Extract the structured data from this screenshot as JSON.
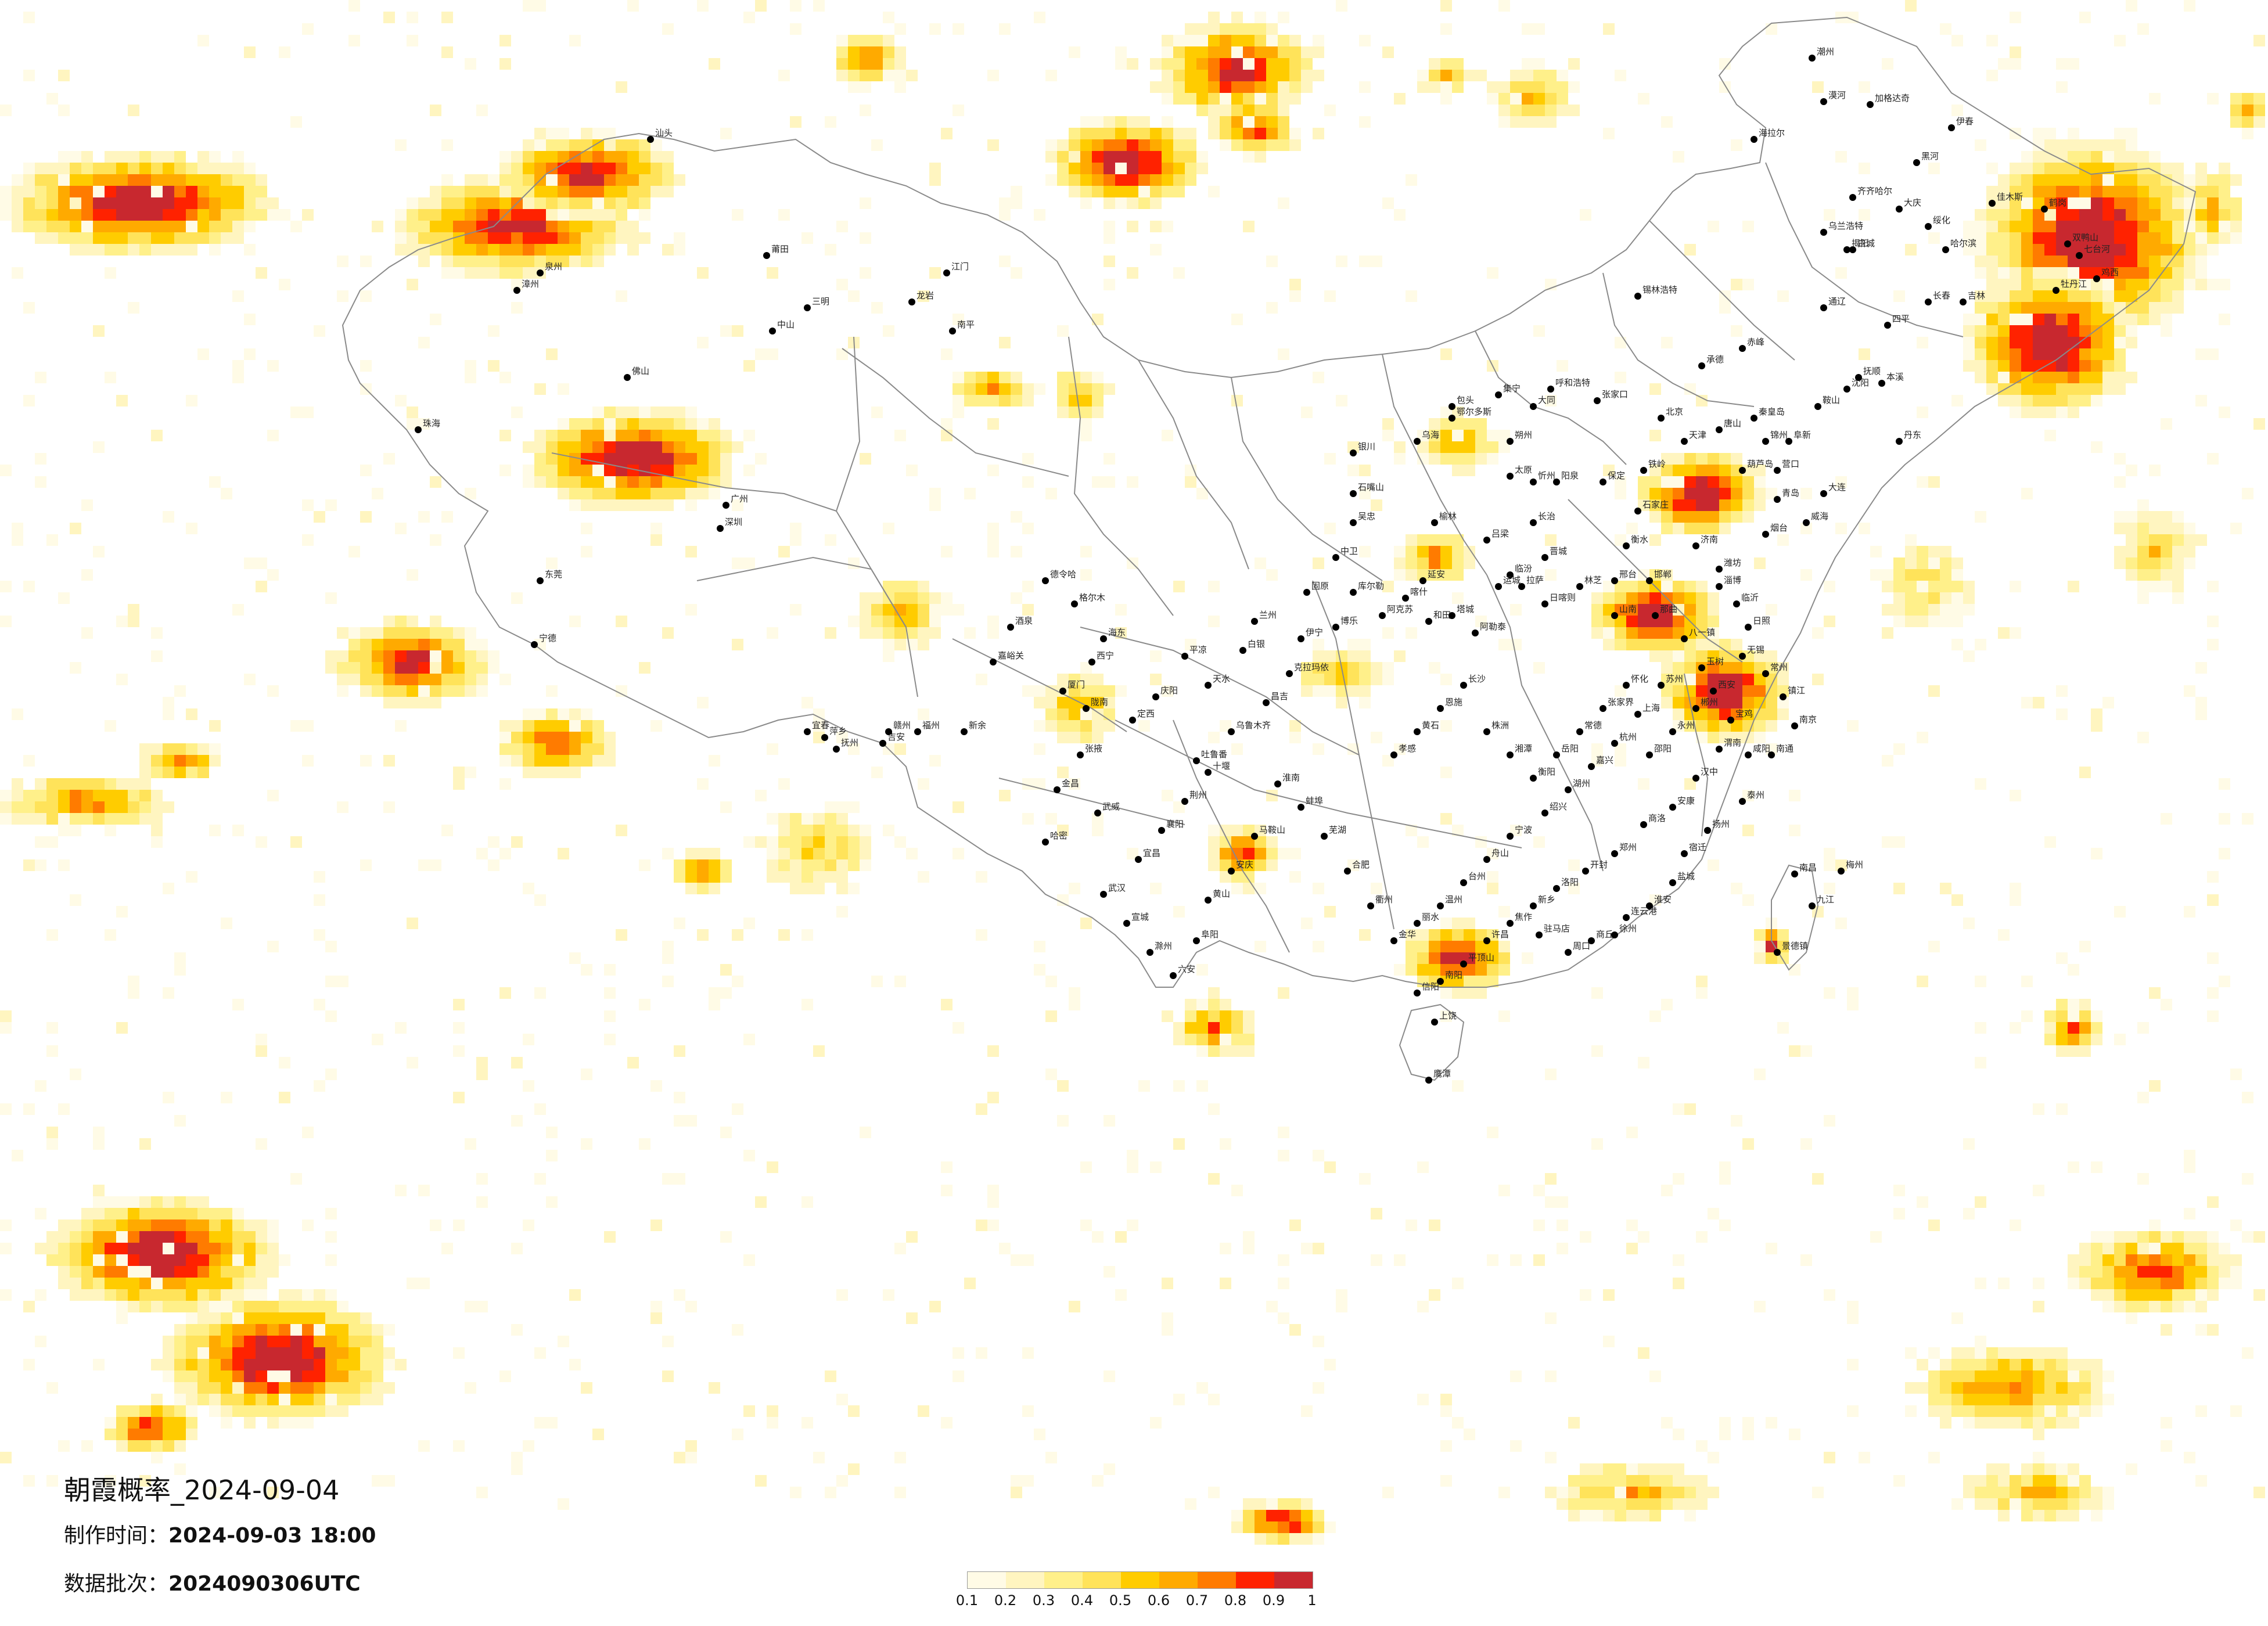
{
  "title": "朝霞概率_2024-09-04",
  "made_label": "制作时间：",
  "made_value": "2024-09-03 18:00",
  "batch_label": "数据批次：",
  "batch_value": "2024090306UTC",
  "legend": {
    "ticks": [
      "0.1",
      "0.2",
      "0.3",
      "0.4",
      "0.5",
      "0.6",
      "0.7",
      "0.8",
      "0.9",
      "1"
    ],
    "colors": [
      "#fffbe6",
      "#fff5c0",
      "#fff08a",
      "#ffe35a",
      "#ffcc00",
      "#ffaa00",
      "#ff7b00",
      "#ff2200",
      "#c8282f"
    ]
  },
  "cities": [
    "漠河",
    "加格达奇",
    "海拉尔",
    "齐齐哈尔",
    "黑河",
    "伊春",
    "乌兰浩特",
    "白城",
    "大庆",
    "绥化",
    "哈尔滨",
    "佳木斯",
    "鹤岗",
    "双鸭山",
    "七台河",
    "鸡西",
    "牡丹江",
    "长春",
    "吉林",
    "四平",
    "通辽",
    "赤峰",
    "锡林浩特",
    "呼和浩特",
    "包头",
    "集宁",
    "张家口",
    "承德",
    "北京",
    "天津",
    "唐山",
    "秦皇岛",
    "沈阳",
    "鞍山",
    "抚顺",
    "本溪",
    "丹东",
    "大连",
    "营口",
    "葫芦岛",
    "锦州",
    "阜新",
    "铁岭",
    "保定",
    "石家庄",
    "衡水",
    "邢台",
    "邯郸",
    "济南",
    "青岛",
    "烟台",
    "威海",
    "潍坊",
    "淄博",
    "临沂",
    "日照",
    "太原",
    "大同",
    "朔州",
    "忻州",
    "阳泉",
    "长治",
    "晋城",
    "临汾",
    "运城",
    "吕梁",
    "榆林",
    "延安",
    "鄂尔多斯",
    "乌海",
    "银川",
    "石嘴山",
    "吴忠",
    "中卫",
    "固原",
    "兰州",
    "白银",
    "天水",
    "平凉",
    "庆阳",
    "定西",
    "陇南",
    "西宁",
    "海东",
    "格尔木",
    "德令哈",
    "酒泉",
    "嘉峪关",
    "张掖",
    "金昌",
    "武威",
    "哈密",
    "吐鲁番",
    "乌鲁木齐",
    "昌吉",
    "克拉玛依",
    "伊宁",
    "博乐",
    "库尔勒",
    "阿克苏",
    "喀什",
    "和田",
    "塔城",
    "阿勒泰",
    "拉萨",
    "日喀则",
    "林芝",
    "山南",
    "那曲",
    "八一镇",
    "玉树",
    "西安",
    "宝鸡",
    "咸阳",
    "渭南",
    "汉中",
    "安康",
    "商洛",
    "郑州",
    "开封",
    "洛阳",
    "新乡",
    "焦作",
    "许昌",
    "平顶山",
    "南阳",
    "信阳",
    "驻马店",
    "周口",
    "商丘",
    "徐州",
    "连云港",
    "淮安",
    "盐城",
    "宿迁",
    "扬州",
    "泰州",
    "南通",
    "南京",
    "镇江",
    "常州",
    "无锡",
    "苏州",
    "上海",
    "杭州",
    "嘉兴",
    "湖州",
    "绍兴",
    "宁波",
    "舟山",
    "台州",
    "温州",
    "丽水",
    "金华",
    "衢州",
    "合肥",
    "芜湖",
    "蚌埠",
    "淮南",
    "马鞍山",
    "安庆",
    "黄山",
    "阜阳",
    "六安",
    "滁州",
    "宣城",
    "武汉",
    "宜昌",
    "襄阳",
    "荆州",
    "十堰",
    "孝感",
    "黄石",
    "恩施",
    "长沙",
    "株洲",
    "湘潭",
    "衡阳",
    "岳阳",
    "常德",
    "张家界",
    "怀化",
    "邵阳",
    "永州",
    "郴州",
    "南昌",
    "九江",
    "景德镇",
    "上饶",
    "鹰潭",
    "抚州",
    "吉安",
    "赣州",
    "宜春",
    "萍乡",
    "新余",
    "福州",
    "厦门",
    "泉州",
    "漳州",
    "莆田",
    "三明",
    "南平",
    "龙岩",
    "宁德",
    "广州",
    "深圳",
    "珠海",
    "东莞",
    "佛山",
    "中山",
    "江门",
    "汕头",
    "潮州",
    "揭阳",
    "梅州",
    "惠州",
    "韶关",
    "清远",
    "肇庆",
    "湛江",
    "茂名",
    "阳江",
    "云浮",
    "南宁",
    "柳州",
    "桂林",
    "梧州",
    "北海",
    "钦州",
    "玉林",
    "百色",
    "河池",
    "贵港",
    "贺州",
    "海口",
    "三亚",
    "成都",
    "绵阳",
    "德阳",
    "乐山",
    "宜宾",
    "泸州",
    "南充",
    "达州",
    "广元",
    "遂宁",
    "内江",
    "自贡",
    "西昌",
    "攀枝花",
    "雅安",
    "重庆",
    "贵阳",
    "遵义",
    "六盘水",
    "安顺",
    "凯里",
    "都匀",
    "铜仁",
    "毕节",
    "昆明",
    "曲靖",
    "玉溪",
    "大理",
    "丽江",
    "保山",
    "临沧",
    "普洱",
    "景洪",
    "文山",
    "个旧",
    "楚雄",
    "香格里拉",
    "台北",
    "台中",
    "高雄",
    "台南",
    "新竹",
    "基隆",
    "花莲",
    "香港",
    "澳门",
    "阿坝",
    "甘孜",
    "马尔康",
    "迪庆",
    "怒江",
    "丽水",
    "巴中",
    "眉山",
    "资阳",
    "广安",
    "邵武",
    "韩城",
    "三门峡",
    "鹤壁",
    "濮阳",
    "聊城",
    "德州",
    "滨州",
    "东营",
    "泰安",
    "莱芜",
    "枣庄",
    "济宁",
    "菏泽",
    "宿州",
    "淮北",
    "亳州",
    "池州",
    "铜陵",
    "黔江",
    "万州",
    "涪陵",
    "酉阳",
    "秀山",
    "吉首",
    "娄底",
    "益阳",
    "荆门",
    "随州",
    "鄂州",
    "咸宁",
    "黄冈",
    "仙桃",
    "潜江",
    "天门",
    "神农架"
  ]
}
